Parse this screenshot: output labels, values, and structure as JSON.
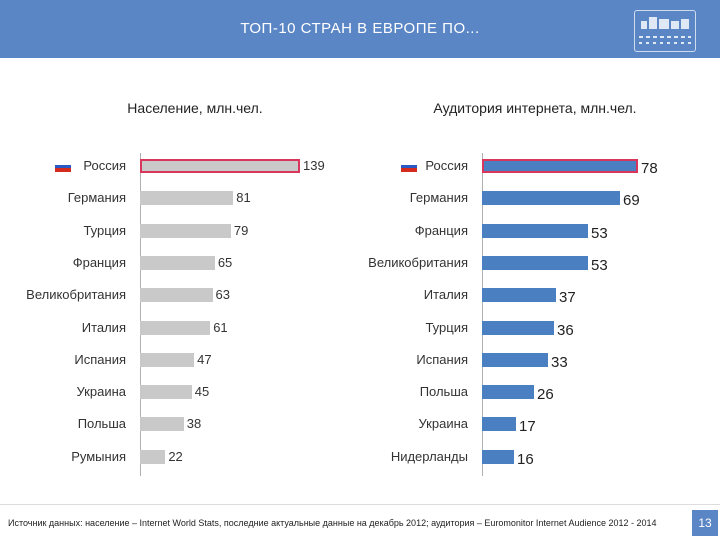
{
  "header": {
    "title": "ТОП-10 СТРАН В ЕВРОПЕ ПО..."
  },
  "colors": {
    "header": "#5b86c5",
    "grey_bar": "#c9c9c9",
    "blue_bar": "#4a7fc1",
    "highlight": "#d9365c"
  },
  "chart_data": [
    {
      "type": "bar",
      "orientation": "horizontal",
      "title": "Население, млн.чел.",
      "categories": [
        "Россия",
        "Германия",
        "Турция",
        "Франция",
        "Великобритания",
        "Италия",
        "Испания",
        "Украина",
        "Польша",
        "Румыния"
      ],
      "values": [
        139,
        81,
        79,
        65,
        63,
        61,
        47,
        45,
        38,
        22
      ],
      "highlighted_category": "Россия",
      "xlim": [
        0,
        139
      ]
    },
    {
      "type": "bar",
      "orientation": "horizontal",
      "title": "Аудитория интернета, млн.чел.",
      "categories": [
        "Россия",
        "Германия",
        "Франция",
        "Великобритания",
        "Италия",
        "Турция",
        "Испания",
        "Польша",
        "Украина",
        "Нидерланды"
      ],
      "values": [
        78,
        69,
        53,
        53,
        37,
        36,
        33,
        26,
        17,
        16
      ],
      "highlighted_category": "Россия",
      "xlim": [
        0,
        78
      ]
    }
  ],
  "footer": {
    "source": "Источник данных: население – Internet World Stats, последние актуальные данные на декабрь 2012; аудитория – Euromonitor Internet Audience 2012 - 2014",
    "page_number": "13"
  }
}
